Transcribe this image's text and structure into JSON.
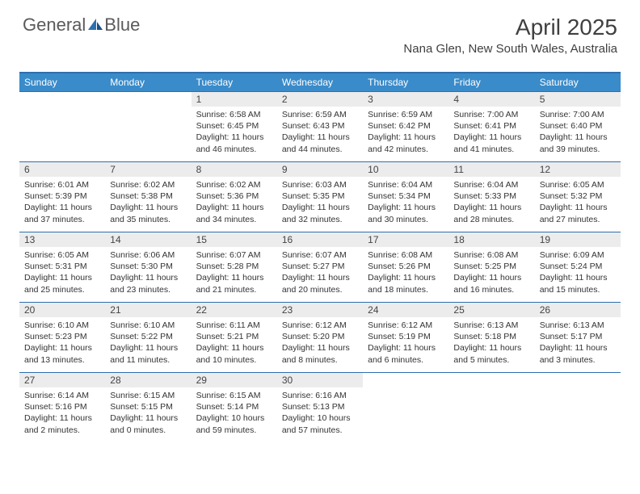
{
  "brand": {
    "part1": "General",
    "part2": "Blue"
  },
  "colors": {
    "accent": "#3a8bc9",
    "accent_dark": "#2f6faf",
    "daynum_bg": "#ececec",
    "text": "#333333",
    "title": "#404040",
    "white": "#ffffff"
  },
  "typography": {
    "title_fontsize": 28,
    "location_fontsize": 15,
    "header_fontsize": 12,
    "cell_fontsize": 10.5
  },
  "title": "April 2025",
  "location": "Nana Glen, New South Wales, Australia",
  "day_headers": [
    "Sunday",
    "Monday",
    "Tuesday",
    "Wednesday",
    "Thursday",
    "Friday",
    "Saturday"
  ],
  "layout": {
    "columns": 7,
    "rows": 5
  },
  "weeks": [
    [
      {
        "empty": true
      },
      {
        "empty": true
      },
      {
        "num": "1",
        "sunrise": "Sunrise: 6:58 AM",
        "sunset": "Sunset: 6:45 PM",
        "day1": "Daylight: 11 hours",
        "day2": "and 46 minutes."
      },
      {
        "num": "2",
        "sunrise": "Sunrise: 6:59 AM",
        "sunset": "Sunset: 6:43 PM",
        "day1": "Daylight: 11 hours",
        "day2": "and 44 minutes."
      },
      {
        "num": "3",
        "sunrise": "Sunrise: 6:59 AM",
        "sunset": "Sunset: 6:42 PM",
        "day1": "Daylight: 11 hours",
        "day2": "and 42 minutes."
      },
      {
        "num": "4",
        "sunrise": "Sunrise: 7:00 AM",
        "sunset": "Sunset: 6:41 PM",
        "day1": "Daylight: 11 hours",
        "day2": "and 41 minutes."
      },
      {
        "num": "5",
        "sunrise": "Sunrise: 7:00 AM",
        "sunset": "Sunset: 6:40 PM",
        "day1": "Daylight: 11 hours",
        "day2": "and 39 minutes."
      }
    ],
    [
      {
        "num": "6",
        "sunrise": "Sunrise: 6:01 AM",
        "sunset": "Sunset: 5:39 PM",
        "day1": "Daylight: 11 hours",
        "day2": "and 37 minutes."
      },
      {
        "num": "7",
        "sunrise": "Sunrise: 6:02 AM",
        "sunset": "Sunset: 5:38 PM",
        "day1": "Daylight: 11 hours",
        "day2": "and 35 minutes."
      },
      {
        "num": "8",
        "sunrise": "Sunrise: 6:02 AM",
        "sunset": "Sunset: 5:36 PM",
        "day1": "Daylight: 11 hours",
        "day2": "and 34 minutes."
      },
      {
        "num": "9",
        "sunrise": "Sunrise: 6:03 AM",
        "sunset": "Sunset: 5:35 PM",
        "day1": "Daylight: 11 hours",
        "day2": "and 32 minutes."
      },
      {
        "num": "10",
        "sunrise": "Sunrise: 6:04 AM",
        "sunset": "Sunset: 5:34 PM",
        "day1": "Daylight: 11 hours",
        "day2": "and 30 minutes."
      },
      {
        "num": "11",
        "sunrise": "Sunrise: 6:04 AM",
        "sunset": "Sunset: 5:33 PM",
        "day1": "Daylight: 11 hours",
        "day2": "and 28 minutes."
      },
      {
        "num": "12",
        "sunrise": "Sunrise: 6:05 AM",
        "sunset": "Sunset: 5:32 PM",
        "day1": "Daylight: 11 hours",
        "day2": "and 27 minutes."
      }
    ],
    [
      {
        "num": "13",
        "sunrise": "Sunrise: 6:05 AM",
        "sunset": "Sunset: 5:31 PM",
        "day1": "Daylight: 11 hours",
        "day2": "and 25 minutes."
      },
      {
        "num": "14",
        "sunrise": "Sunrise: 6:06 AM",
        "sunset": "Sunset: 5:30 PM",
        "day1": "Daylight: 11 hours",
        "day2": "and 23 minutes."
      },
      {
        "num": "15",
        "sunrise": "Sunrise: 6:07 AM",
        "sunset": "Sunset: 5:28 PM",
        "day1": "Daylight: 11 hours",
        "day2": "and 21 minutes."
      },
      {
        "num": "16",
        "sunrise": "Sunrise: 6:07 AM",
        "sunset": "Sunset: 5:27 PM",
        "day1": "Daylight: 11 hours",
        "day2": "and 20 minutes."
      },
      {
        "num": "17",
        "sunrise": "Sunrise: 6:08 AM",
        "sunset": "Sunset: 5:26 PM",
        "day1": "Daylight: 11 hours",
        "day2": "and 18 minutes."
      },
      {
        "num": "18",
        "sunrise": "Sunrise: 6:08 AM",
        "sunset": "Sunset: 5:25 PM",
        "day1": "Daylight: 11 hours",
        "day2": "and 16 minutes."
      },
      {
        "num": "19",
        "sunrise": "Sunrise: 6:09 AM",
        "sunset": "Sunset: 5:24 PM",
        "day1": "Daylight: 11 hours",
        "day2": "and 15 minutes."
      }
    ],
    [
      {
        "num": "20",
        "sunrise": "Sunrise: 6:10 AM",
        "sunset": "Sunset: 5:23 PM",
        "day1": "Daylight: 11 hours",
        "day2": "and 13 minutes."
      },
      {
        "num": "21",
        "sunrise": "Sunrise: 6:10 AM",
        "sunset": "Sunset: 5:22 PM",
        "day1": "Daylight: 11 hours",
        "day2": "and 11 minutes."
      },
      {
        "num": "22",
        "sunrise": "Sunrise: 6:11 AM",
        "sunset": "Sunset: 5:21 PM",
        "day1": "Daylight: 11 hours",
        "day2": "and 10 minutes."
      },
      {
        "num": "23",
        "sunrise": "Sunrise: 6:12 AM",
        "sunset": "Sunset: 5:20 PM",
        "day1": "Daylight: 11 hours",
        "day2": "and 8 minutes."
      },
      {
        "num": "24",
        "sunrise": "Sunrise: 6:12 AM",
        "sunset": "Sunset: 5:19 PM",
        "day1": "Daylight: 11 hours",
        "day2": "and 6 minutes."
      },
      {
        "num": "25",
        "sunrise": "Sunrise: 6:13 AM",
        "sunset": "Sunset: 5:18 PM",
        "day1": "Daylight: 11 hours",
        "day2": "and 5 minutes."
      },
      {
        "num": "26",
        "sunrise": "Sunrise: 6:13 AM",
        "sunset": "Sunset: 5:17 PM",
        "day1": "Daylight: 11 hours",
        "day2": "and 3 minutes."
      }
    ],
    [
      {
        "num": "27",
        "sunrise": "Sunrise: 6:14 AM",
        "sunset": "Sunset: 5:16 PM",
        "day1": "Daylight: 11 hours",
        "day2": "and 2 minutes."
      },
      {
        "num": "28",
        "sunrise": "Sunrise: 6:15 AM",
        "sunset": "Sunset: 5:15 PM",
        "day1": "Daylight: 11 hours",
        "day2": "and 0 minutes."
      },
      {
        "num": "29",
        "sunrise": "Sunrise: 6:15 AM",
        "sunset": "Sunset: 5:14 PM",
        "day1": "Daylight: 10 hours",
        "day2": "and 59 minutes."
      },
      {
        "num": "30",
        "sunrise": "Sunrise: 6:16 AM",
        "sunset": "Sunset: 5:13 PM",
        "day1": "Daylight: 10 hours",
        "day2": "and 57 minutes."
      },
      {
        "empty": true
      },
      {
        "empty": true
      },
      {
        "empty": true
      }
    ]
  ]
}
